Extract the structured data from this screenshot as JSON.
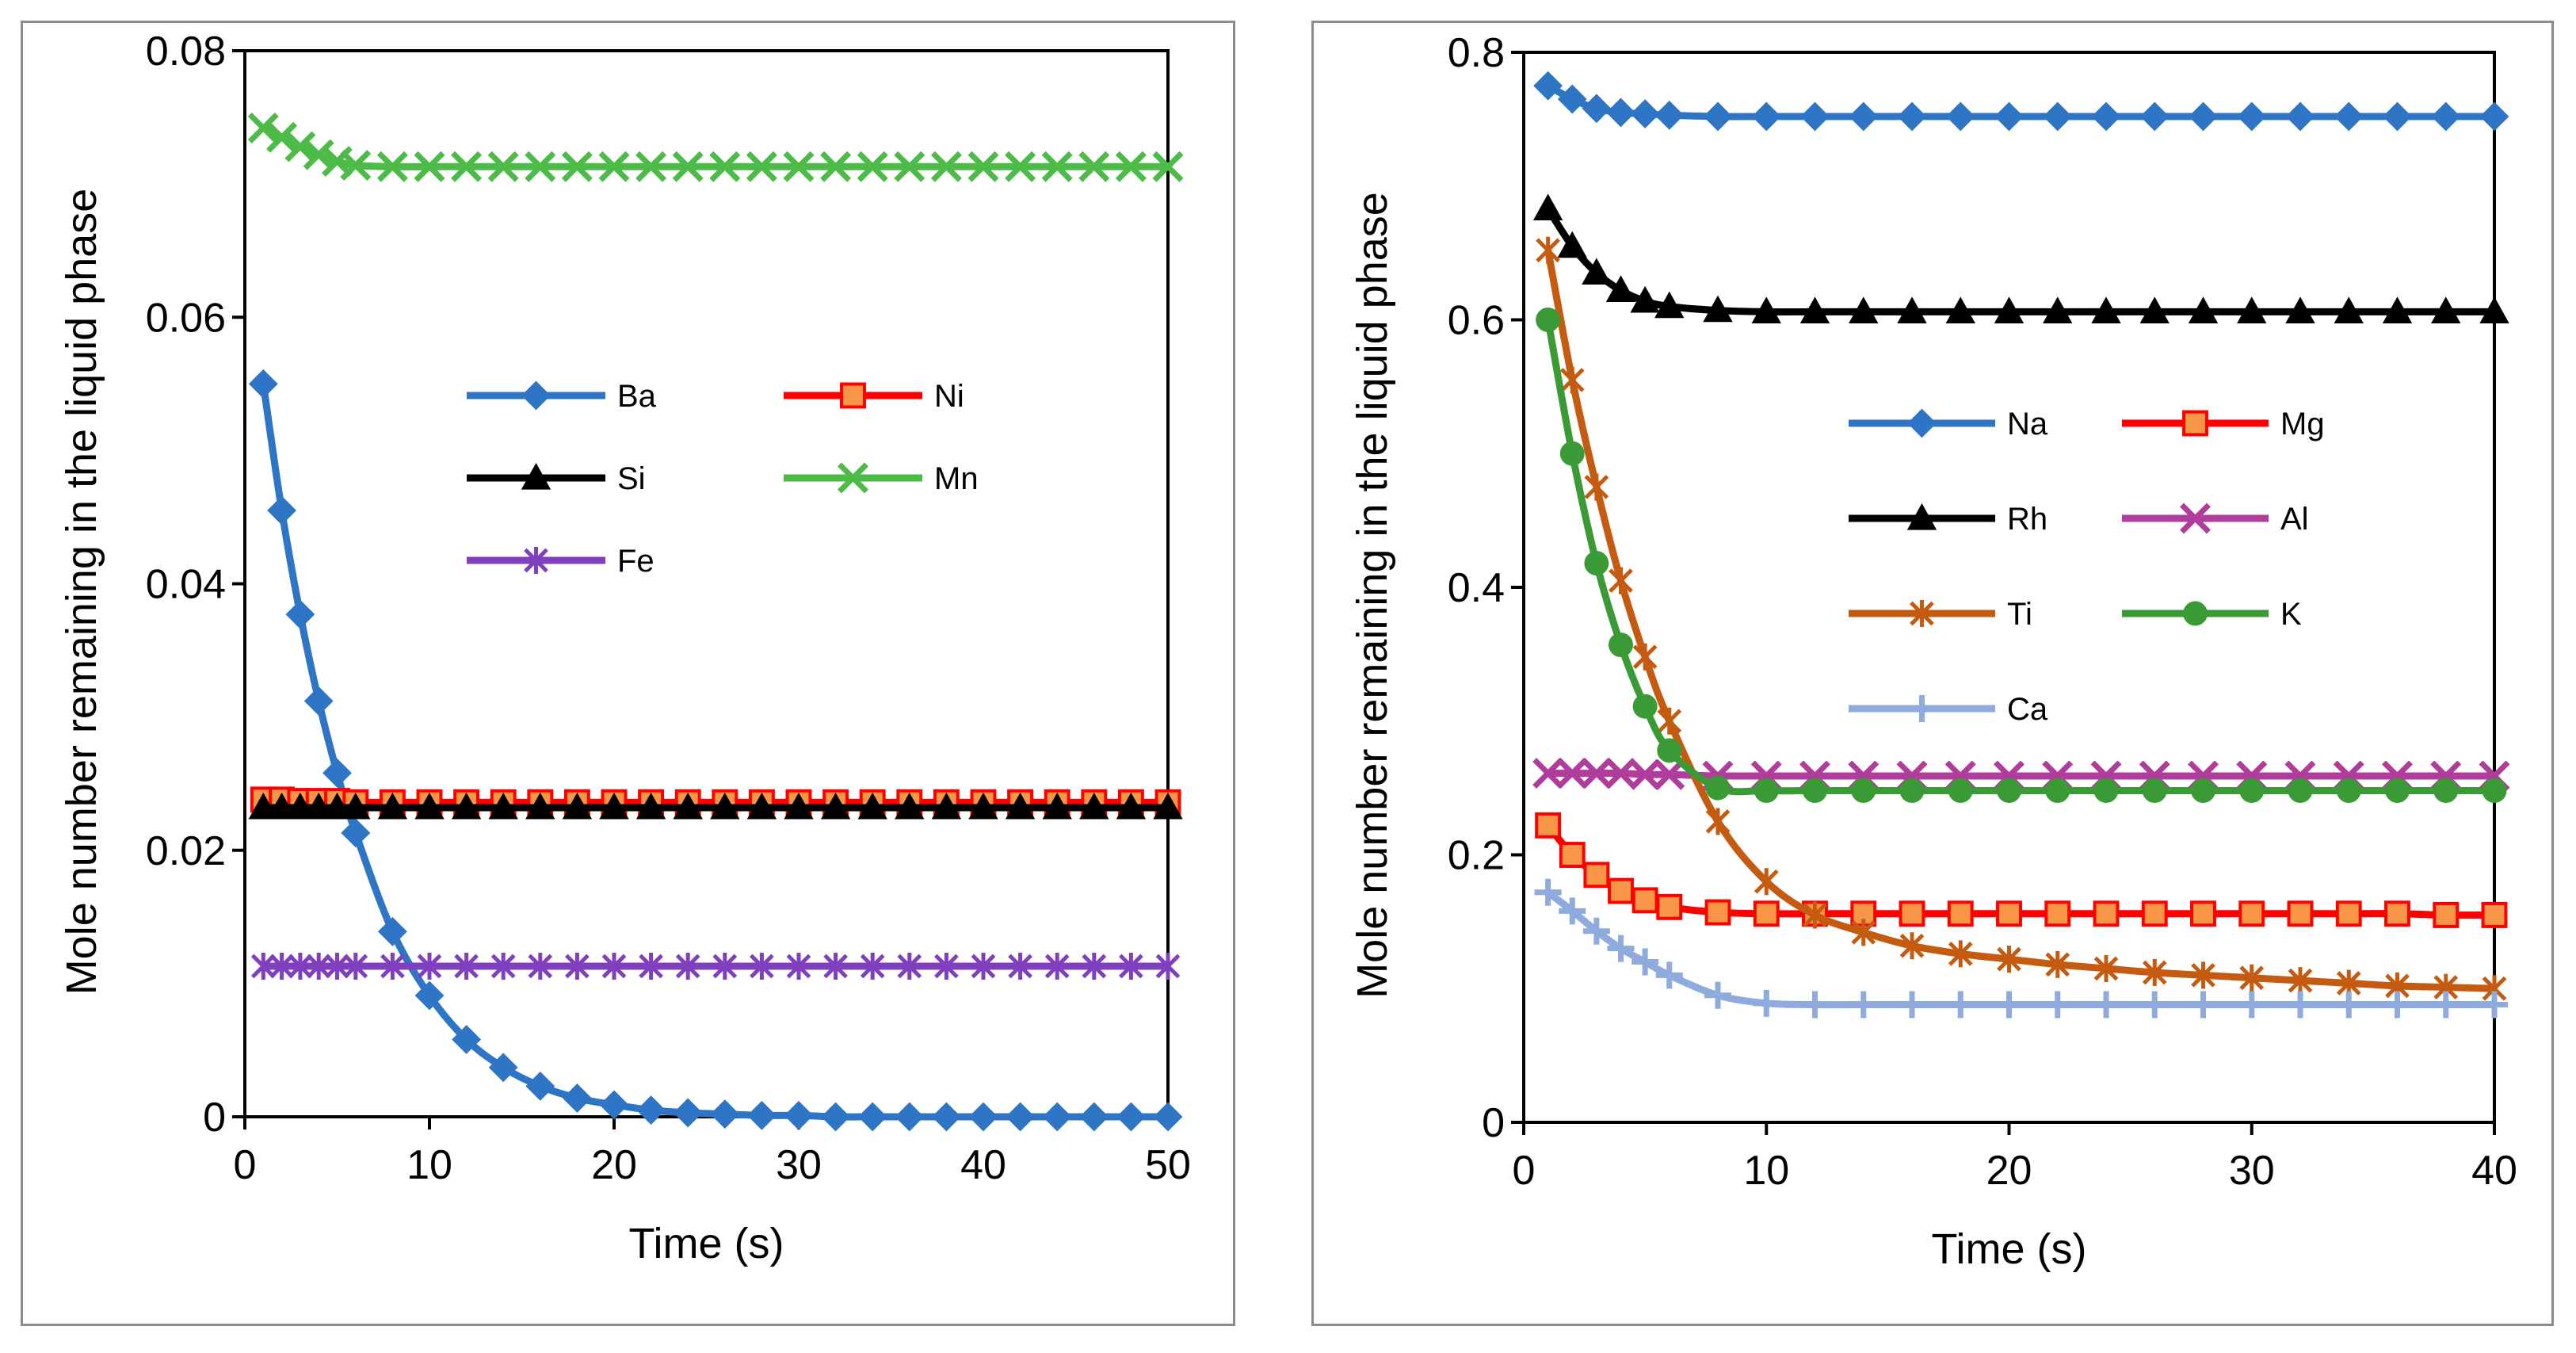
{
  "chart_data": [
    {
      "type": "line",
      "xlabel": "Time (s)",
      "ylabel": "Mole number remaining in the liquid phase",
      "xlim": [
        0,
        50
      ],
      "ylim": [
        0,
        0.08
      ],
      "xticks": [
        "0",
        "10",
        "20",
        "30",
        "40",
        "50"
      ],
      "yticks": [
        "0",
        "0.02",
        "0.04",
        "0.06",
        "0.08"
      ],
      "grid": false,
      "legend_position": "center-right",
      "legend_columns": 2,
      "series": [
        {
          "name": "Ba",
          "color": "#2E75C6",
          "marker": "diamond",
          "x": [
            1,
            2,
            3,
            4,
            5,
            6,
            8,
            10,
            12,
            14,
            16,
            18,
            20,
            22,
            24,
            26,
            28,
            30,
            32,
            34,
            36,
            38,
            40,
            42,
            44,
            46,
            48,
            50
          ],
          "y": [
            0.055,
            0.0455,
            0.0377,
            0.0312,
            0.0258,
            0.0213,
            0.0139,
            0.0091,
            0.0058,
            0.0037,
            0.0023,
            0.0014,
            0.0009,
            0.0005,
            0.0003,
            0.0002,
            0.0001,
            0.0001,
            0,
            0,
            0,
            0,
            0,
            0,
            0,
            0,
            0,
            0
          ]
        },
        {
          "name": "Ni",
          "color": "#FF0000",
          "marker": "square",
          "marker_fill": "#F79646",
          "x": [
            1,
            2,
            3,
            4,
            5,
            6,
            8,
            10,
            12,
            14,
            16,
            18,
            20,
            22,
            24,
            26,
            28,
            30,
            32,
            34,
            36,
            38,
            40,
            42,
            44,
            46,
            48,
            50
          ],
          "y": [
            0.0238,
            0.0238,
            0.0237,
            0.0237,
            0.0237,
            0.0236,
            0.0236,
            0.0236,
            0.0236,
            0.0236,
            0.0236,
            0.0236,
            0.0236,
            0.0236,
            0.0236,
            0.0236,
            0.0236,
            0.0236,
            0.0236,
            0.0236,
            0.0236,
            0.0236,
            0.0236,
            0.0236,
            0.0236,
            0.0236,
            0.0236,
            0.0236
          ]
        },
        {
          "name": "Si",
          "color": "#000000",
          "marker": "triangle",
          "x": [
            1,
            2,
            3,
            4,
            5,
            6,
            8,
            10,
            12,
            14,
            16,
            18,
            20,
            22,
            24,
            26,
            28,
            30,
            32,
            34,
            36,
            38,
            40,
            42,
            44,
            46,
            48,
            50
          ],
          "y": [
            0.0232,
            0.0232,
            0.0232,
            0.0232,
            0.0232,
            0.0232,
            0.0232,
            0.0232,
            0.0232,
            0.0232,
            0.0232,
            0.0232,
            0.0232,
            0.0232,
            0.0232,
            0.0232,
            0.0232,
            0.0232,
            0.0232,
            0.0232,
            0.0232,
            0.0232,
            0.0232,
            0.0232,
            0.0232,
            0.0232,
            0.0232,
            0.0232
          ]
        },
        {
          "name": "Mn",
          "color": "#4CBB47",
          "marker": "x",
          "x": [
            1,
            2,
            3,
            4,
            5,
            6,
            8,
            10,
            12,
            14,
            16,
            18,
            20,
            22,
            24,
            26,
            28,
            30,
            32,
            34,
            36,
            38,
            40,
            42,
            44,
            46,
            48,
            50
          ],
          "y": [
            0.0742,
            0.0735,
            0.0728,
            0.0722,
            0.0717,
            0.0714,
            0.0713,
            0.0713,
            0.0713,
            0.0713,
            0.0713,
            0.0713,
            0.0713,
            0.0713,
            0.0713,
            0.0713,
            0.0713,
            0.0713,
            0.0713,
            0.0713,
            0.0713,
            0.0713,
            0.0713,
            0.0713,
            0.0713,
            0.0713,
            0.0713,
            0.0713
          ]
        },
        {
          "name": "Fe",
          "color": "#7F3FBF",
          "marker": "asterisk",
          "x": [
            1,
            2,
            3,
            4,
            5,
            6,
            8,
            10,
            12,
            14,
            16,
            18,
            20,
            22,
            24,
            26,
            28,
            30,
            32,
            34,
            36,
            38,
            40,
            42,
            44,
            46,
            48,
            50
          ],
          "y": [
            0.0113,
            0.0113,
            0.0113,
            0.0113,
            0.0113,
            0.0113,
            0.0113,
            0.0113,
            0.0113,
            0.0113,
            0.0113,
            0.0113,
            0.0113,
            0.0113,
            0.0113,
            0.0113,
            0.0113,
            0.0113,
            0.0113,
            0.0113,
            0.0113,
            0.0113,
            0.0113,
            0.0113,
            0.0113,
            0.0113,
            0.0113,
            0.0113
          ]
        }
      ]
    },
    {
      "type": "line",
      "xlabel": "Time (s)",
      "ylabel": "Mole number remaining in the liquid phase",
      "xlim": [
        0,
        40
      ],
      "ylim": [
        0,
        0.8
      ],
      "xticks": [
        "0",
        "10",
        "20",
        "30",
        "40"
      ],
      "yticks": [
        "0",
        "0.2",
        "0.4",
        "0.6",
        "0.8"
      ],
      "grid": false,
      "legend_position": "center-right",
      "legend_columns": 2,
      "series": [
        {
          "name": "Na",
          "color": "#2E75C6",
          "marker": "diamond",
          "x": [
            1,
            2,
            3,
            4,
            5,
            6,
            8,
            10,
            12,
            14,
            16,
            18,
            20,
            22,
            24,
            26,
            28,
            30,
            32,
            34,
            36,
            38,
            40
          ],
          "y": [
            0.775,
            0.765,
            0.758,
            0.755,
            0.754,
            0.753,
            0.752,
            0.752,
            0.752,
            0.752,
            0.752,
            0.752,
            0.752,
            0.752,
            0.752,
            0.752,
            0.752,
            0.752,
            0.752,
            0.752,
            0.752,
            0.752,
            0.752
          ]
        },
        {
          "name": "Mg",
          "color": "#FF0000",
          "marker": "square",
          "marker_fill": "#F79646",
          "x": [
            1,
            2,
            3,
            4,
            5,
            6,
            8,
            10,
            12,
            14,
            16,
            18,
            20,
            22,
            24,
            26,
            28,
            30,
            32,
            34,
            36,
            38,
            40
          ],
          "y": [
            0.222,
            0.2,
            0.185,
            0.173,
            0.166,
            0.161,
            0.157,
            0.156,
            0.156,
            0.156,
            0.156,
            0.156,
            0.156,
            0.156,
            0.156,
            0.156,
            0.156,
            0.156,
            0.156,
            0.156,
            0.156,
            0.155,
            0.155
          ]
        },
        {
          "name": "Rh",
          "color": "#000000",
          "marker": "triangle",
          "x": [
            1,
            2,
            3,
            4,
            5,
            6,
            8,
            10,
            12,
            14,
            16,
            18,
            20,
            22,
            24,
            26,
            28,
            30,
            32,
            34,
            36,
            38,
            40
          ],
          "y": [
            0.683,
            0.655,
            0.635,
            0.622,
            0.614,
            0.61,
            0.607,
            0.606,
            0.606,
            0.606,
            0.606,
            0.606,
            0.606,
            0.606,
            0.606,
            0.606,
            0.606,
            0.606,
            0.606,
            0.606,
            0.606,
            0.606,
            0.606
          ]
        },
        {
          "name": "Al",
          "color": "#B03C9C",
          "marker": "x",
          "x": [
            1,
            2,
            3,
            4,
            5,
            6,
            8,
            10,
            12,
            14,
            16,
            18,
            20,
            22,
            24,
            26,
            28,
            30,
            32,
            34,
            36,
            38,
            40
          ],
          "y": [
            0.261,
            0.261,
            0.261,
            0.261,
            0.26,
            0.26,
            0.259,
            0.259,
            0.259,
            0.259,
            0.259,
            0.259,
            0.259,
            0.259,
            0.259,
            0.259,
            0.259,
            0.259,
            0.259,
            0.259,
            0.259,
            0.259,
            0.259
          ]
        },
        {
          "name": "Ti",
          "color": "#C55A11",
          "marker": "asterisk",
          "x": [
            1,
            2,
            3,
            4,
            5,
            6,
            8,
            10,
            12,
            14,
            16,
            18,
            20,
            22,
            24,
            26,
            28,
            30,
            32,
            34,
            36,
            38,
            40
          ],
          "y": [
            0.652,
            0.555,
            0.475,
            0.405,
            0.348,
            0.3,
            0.225,
            0.18,
            0.155,
            0.142,
            0.132,
            0.126,
            0.122,
            0.118,
            0.115,
            0.112,
            0.11,
            0.108,
            0.106,
            0.104,
            0.102,
            0.101,
            0.1
          ]
        },
        {
          "name": "K",
          "color": "#3A9A35",
          "marker": "circle",
          "x": [
            1,
            2,
            3,
            4,
            5,
            6,
            8,
            10,
            12,
            14,
            16,
            18,
            20,
            22,
            24,
            26,
            28,
            30,
            32,
            34,
            36,
            38,
            40
          ],
          "y": [
            0.6,
            0.5,
            0.418,
            0.357,
            0.311,
            0.278,
            0.25,
            0.248,
            0.248,
            0.248,
            0.248,
            0.248,
            0.248,
            0.248,
            0.248,
            0.248,
            0.248,
            0.248,
            0.248,
            0.248,
            0.248,
            0.248,
            0.248
          ]
        },
        {
          "name": "Ca",
          "color": "#8FAADC",
          "marker": "plus",
          "x": [
            1,
            2,
            3,
            4,
            5,
            6,
            8,
            10,
            12,
            14,
            16,
            18,
            20,
            22,
            24,
            26,
            28,
            30,
            32,
            34,
            36,
            38,
            40
          ],
          "y": [
            0.172,
            0.158,
            0.143,
            0.13,
            0.12,
            0.11,
            0.095,
            0.089,
            0.088,
            0.088,
            0.088,
            0.088,
            0.088,
            0.088,
            0.088,
            0.088,
            0.088,
            0.088,
            0.088,
            0.088,
            0.088,
            0.088,
            0.088
          ]
        }
      ]
    }
  ]
}
